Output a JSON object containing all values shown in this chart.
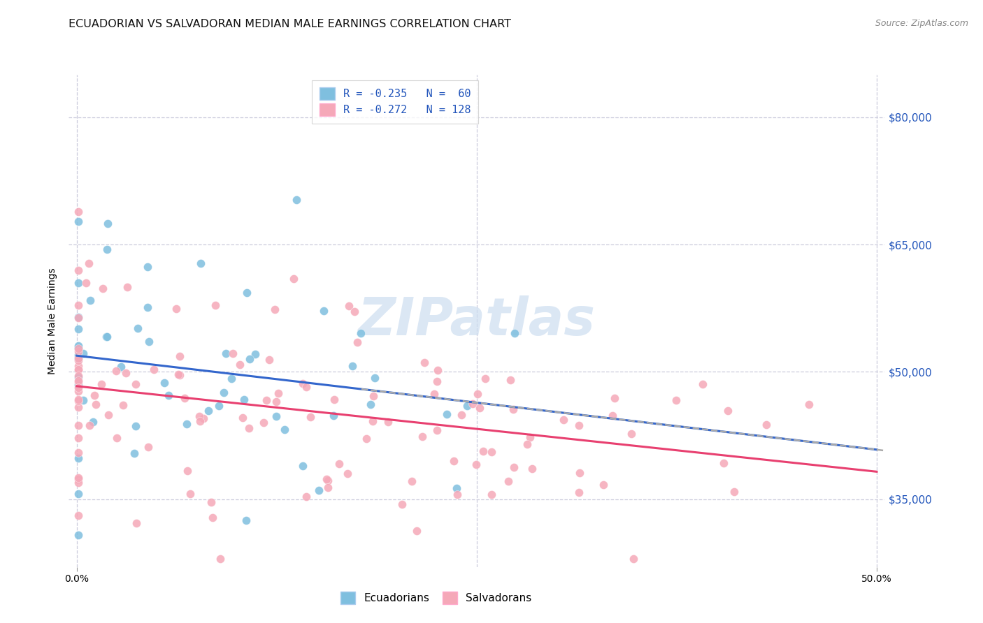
{
  "title": "ECUADORIAN VS SALVADORAN MEDIAN MALE EARNINGS CORRELATION CHART",
  "source": "Source: ZipAtlas.com",
  "ylabel": "Median Male Earnings",
  "ytick_values": [
    35000,
    50000,
    65000,
    80000
  ],
  "ytick_labels": [
    "$35,000",
    "$50,000",
    "$65,000",
    "$80,000"
  ],
  "ylim": [
    27000,
    85000
  ],
  "xlim": [
    -0.005,
    0.505
  ],
  "legend_line1": "R = -0.235   N =  60",
  "legend_line2": "R = -0.272   N = 128",
  "blue_scatter": "#7fbfdf",
  "pink_scatter": "#f5a8b8",
  "line_blue": "#3366cc",
  "line_pink": "#e84070",
  "line_dashed": "#aaaaaa",
  "title_color": "#111111",
  "source_color": "#888888",
  "watermark_color": "#ccddf0",
  "grid_color": "#ccccdd",
  "right_label_color": "#2255bb",
  "ecu_r": -0.235,
  "sal_r": -0.272,
  "ecu_n": 60,
  "sal_n": 128
}
